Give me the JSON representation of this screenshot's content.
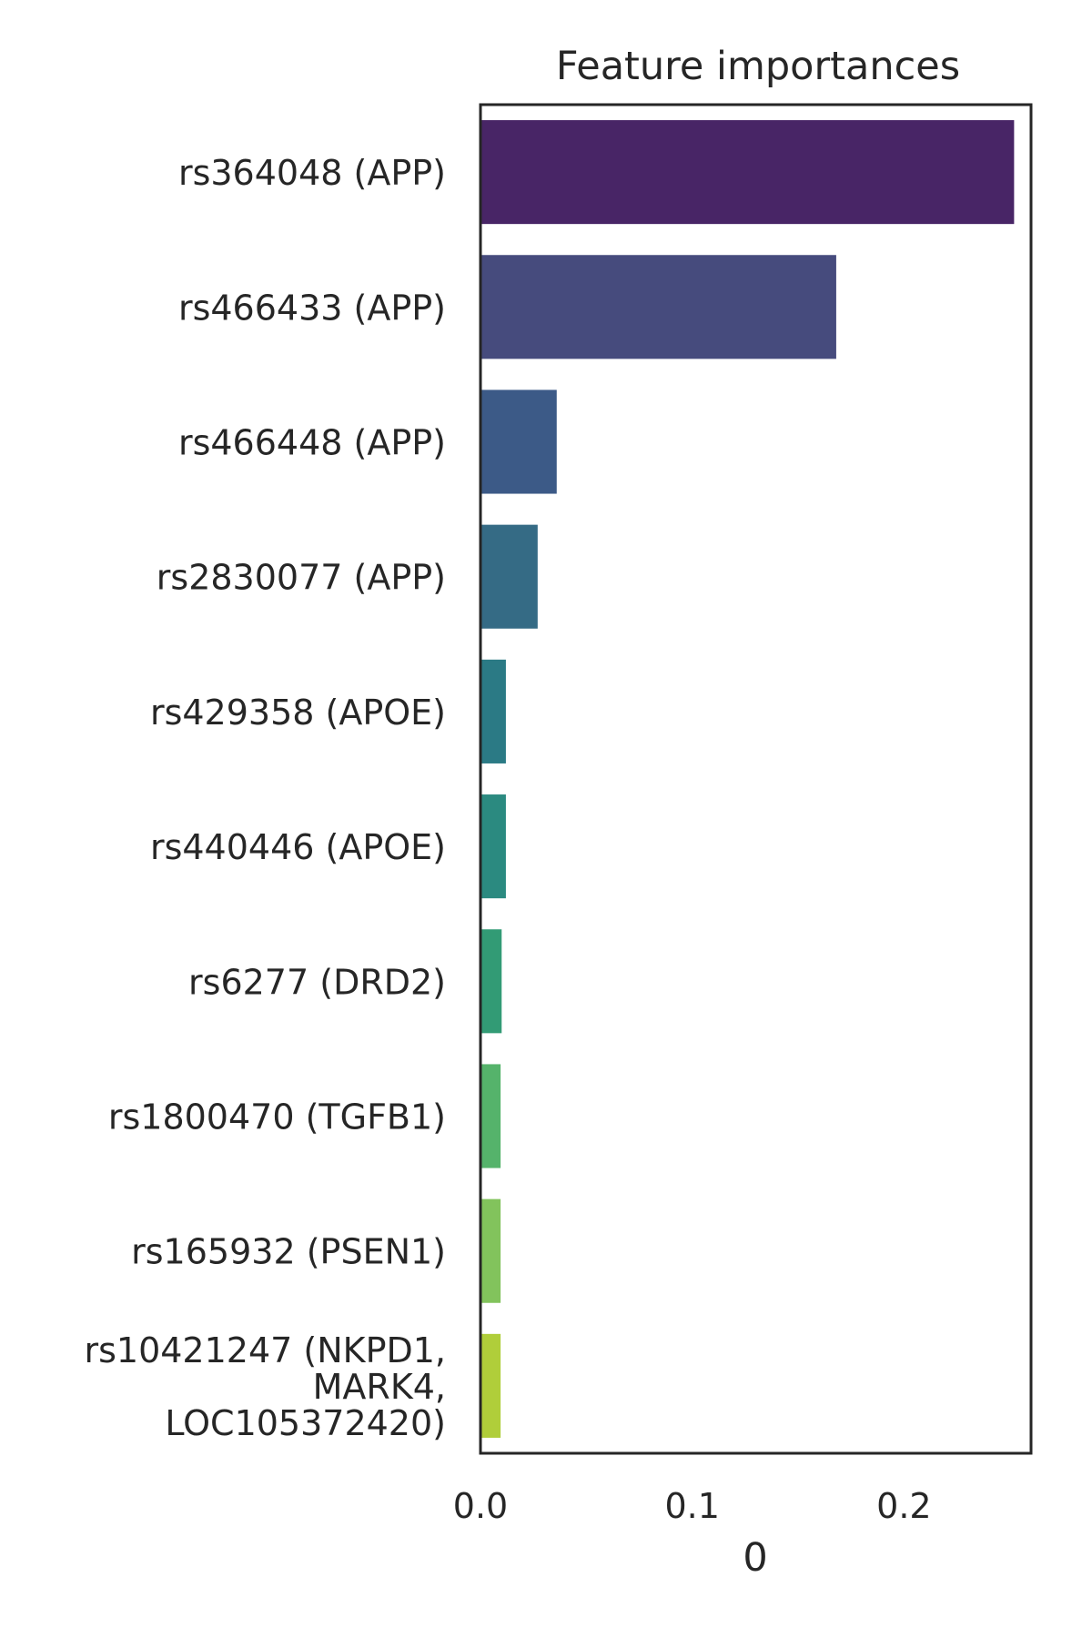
{
  "chart_data": {
    "type": "bar",
    "orientation": "horizontal",
    "title": "Feature importances",
    "xlabel": "0",
    "ylabel": "",
    "xlim": [
      0,
      0.26
    ],
    "xticks": [
      "0.0",
      "0.1",
      "0.2"
    ],
    "grid": false,
    "categories": [
      [
        "rs364048 (APP)"
      ],
      [
        "rs466433 (APP)"
      ],
      [
        "rs466448 (APP)"
      ],
      [
        "rs2830077 (APP)"
      ],
      [
        "rs429358 (APOE)"
      ],
      [
        "rs440446 (APOE)"
      ],
      [
        "rs6277 (DRD2)"
      ],
      [
        "rs1800470 (TGFB1)"
      ],
      [
        "rs165932 (PSEN1)"
      ],
      [
        "rs10421247 (NKPD1,",
        "MARK4,",
        "LOC105372420)"
      ]
    ],
    "values": [
      0.252,
      0.168,
      0.036,
      0.027,
      0.012,
      0.012,
      0.01,
      0.0095,
      0.0095,
      0.0095
    ],
    "colors": [
      "#482566",
      "#464b7d",
      "#3c5a87",
      "#356b85",
      "#2b7a85",
      "#2b8a80",
      "#329b75",
      "#55b36b",
      "#82c35c",
      "#b0ce3a"
    ]
  }
}
